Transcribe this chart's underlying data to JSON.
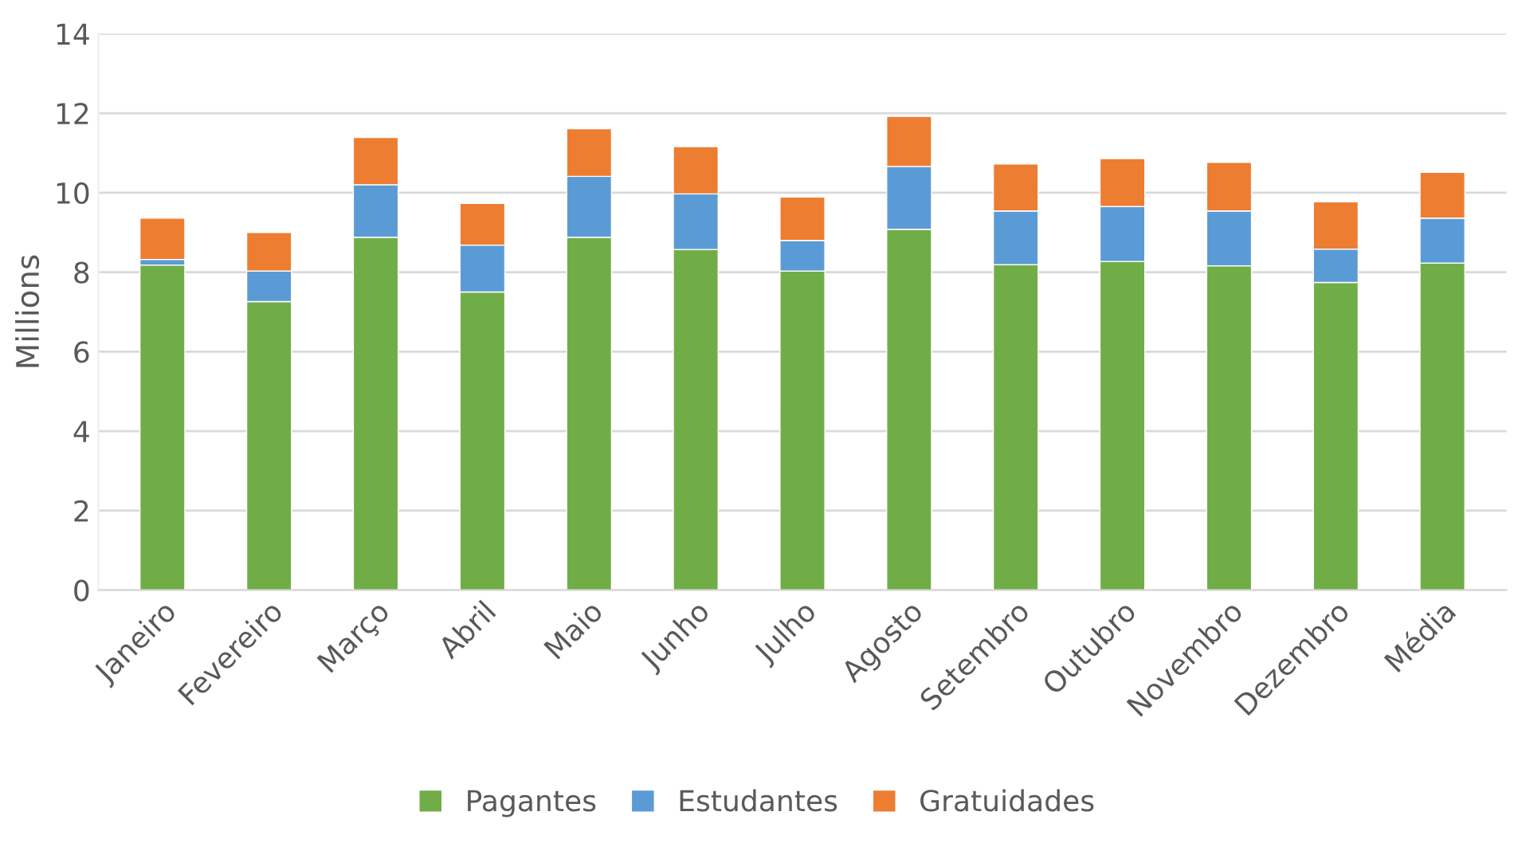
{
  "chart_data": {
    "type": "bar",
    "stacked": true,
    "ylabel": "Millions",
    "categories": [
      "Janeiro",
      "Fevereiro",
      "Março",
      "Abril",
      "Maio",
      "Junho",
      "Julho",
      "Agosto",
      "Setembro",
      "Outubro",
      "Novembro",
      "Dezembro",
      "Média"
    ],
    "series": [
      {
        "name": "Pagantes",
        "color": "#70ad47",
        "values": [
          8.18,
          7.26,
          8.88,
          7.5,
          8.88,
          8.57,
          8.03,
          9.08,
          8.19,
          8.27,
          8.16,
          7.74,
          8.23
        ]
      },
      {
        "name": "Estudantes",
        "color": "#5b9bd5",
        "values": [
          0.14,
          0.77,
          1.32,
          1.18,
          1.53,
          1.4,
          0.77,
          1.58,
          1.35,
          1.38,
          1.38,
          0.84,
          1.13
        ]
      },
      {
        "name": "Gratuidades",
        "color": "#ed7d31",
        "values": [
          1.04,
          0.97,
          1.19,
          1.05,
          1.2,
          1.19,
          1.09,
          1.26,
          1.18,
          1.21,
          1.22,
          1.19,
          1.15
        ]
      }
    ],
    "ylim": [
      0,
      14
    ],
    "yticks": [
      0,
      2,
      4,
      6,
      8,
      10,
      12,
      14
    ],
    "grid": "y",
    "legend": "bottom"
  }
}
